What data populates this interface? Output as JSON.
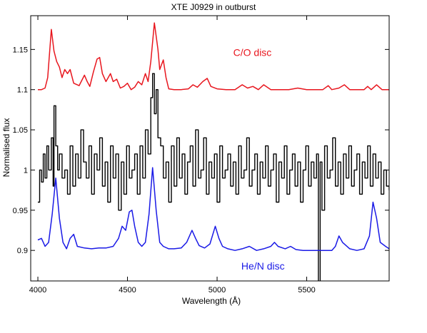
{
  "chart_data": {
    "type": "line",
    "title": "XTE J0929 in outburst",
    "xlabel": "Wavelength (Å)",
    "ylabel": "Normalised flux",
    "xlim": [
      3960,
      5960
    ],
    "ylim": [
      0.862,
      1.192
    ],
    "x_ticks": [
      4000,
      4500,
      5000,
      5500
    ],
    "x_tick_labels": [
      "4000",
      "4500",
      "5000",
      "5500"
    ],
    "y_ticks": [
      0.9,
      0.95,
      1.0,
      1.05,
      1.1,
      1.15
    ],
    "y_tick_labels": [
      "0.9",
      "0.95",
      "1",
      "1.05",
      "1.1",
      "1.15"
    ],
    "grid": false,
    "legend": "none",
    "annotations": [
      {
        "text": "C/O disc",
        "x": 5090,
        "y": 1.142,
        "color": "#e8161e"
      },
      {
        "text": "He/N disc",
        "x": 5135,
        "y": 0.876,
        "color": "#1a1ae6"
      }
    ],
    "series": [
      {
        "color": "#e8161e",
        "style": "line",
        "x": [
          4000,
          4020,
          4040,
          4055,
          4075,
          4090,
          4105,
          4120,
          4135,
          4150,
          4165,
          4180,
          4200,
          4230,
          4260,
          4275,
          4290,
          4310,
          4330,
          4345,
          4360,
          4380,
          4405,
          4420,
          4440,
          4460,
          4480,
          4500,
          4520,
          4540,
          4560,
          4580,
          4600,
          4615,
          4630,
          4650,
          4670,
          4680,
          4700,
          4715,
          4730,
          4760,
          4800,
          4840,
          4865,
          4890,
          4920,
          4945,
          4965,
          5000,
          5050,
          5100,
          5140,
          5170,
          5200,
          5230,
          5260,
          5300,
          5350,
          5400,
          5450,
          5500,
          5550,
          5590,
          5620,
          5640,
          5680,
          5710,
          5740,
          5780,
          5820,
          5840,
          5860,
          5890,
          5920,
          5960
        ],
        "y": [
          1.1,
          1.1,
          1.102,
          1.115,
          1.175,
          1.148,
          1.135,
          1.128,
          1.115,
          1.125,
          1.12,
          1.125,
          1.108,
          1.105,
          1.118,
          1.11,
          1.104,
          1.122,
          1.138,
          1.14,
          1.12,
          1.11,
          1.12,
          1.11,
          1.113,
          1.102,
          1.104,
          1.108,
          1.1,
          1.103,
          1.11,
          1.106,
          1.12,
          1.11,
          1.135,
          1.183,
          1.15,
          1.125,
          1.137,
          1.115,
          1.101,
          1.1,
          1.1,
          1.101,
          1.106,
          1.103,
          1.11,
          1.114,
          1.104,
          1.101,
          1.1,
          1.1,
          1.106,
          1.102,
          1.104,
          1.1,
          1.106,
          1.1,
          1.1,
          1.1,
          1.102,
          1.1,
          1.1,
          1.1,
          1.105,
          1.1,
          1.102,
          1.106,
          1.1,
          1.1,
          1.1,
          1.104,
          1.1,
          1.106,
          1.1,
          1.1
        ]
      },
      {
        "color": "#000000",
        "style": "steps",
        "x": [
          4000,
          4010,
          4020,
          4030,
          4040,
          4050,
          4060,
          4075,
          4085,
          4090,
          4100,
          4110,
          4120,
          4135,
          4150,
          4165,
          4180,
          4195,
          4210,
          4225,
          4240,
          4255,
          4270,
          4285,
          4300,
          4315,
          4330,
          4345,
          4360,
          4375,
          4390,
          4405,
          4420,
          4435,
          4450,
          4465,
          4480,
          4495,
          4510,
          4525,
          4540,
          4555,
          4570,
          4585,
          4600,
          4615,
          4630,
          4640,
          4650,
          4660,
          4670,
          4685,
          4700,
          4715,
          4730,
          4745,
          4760,
          4775,
          4790,
          4805,
          4820,
          4835,
          4850,
          4865,
          4880,
          4895,
          4910,
          4925,
          4940,
          4955,
          4970,
          4985,
          5000,
          5015,
          5030,
          5045,
          5060,
          5075,
          5090,
          5105,
          5120,
          5135,
          5150,
          5165,
          5180,
          5195,
          5210,
          5225,
          5240,
          5255,
          5270,
          5285,
          5300,
          5315,
          5330,
          5345,
          5360,
          5375,
          5390,
          5405,
          5420,
          5435,
          5450,
          5465,
          5480,
          5495,
          5510,
          5525,
          5540,
          5555,
          5565,
          5575,
          5585,
          5600,
          5615,
          5630,
          5645,
          5660,
          5675,
          5690,
          5705,
          5720,
          5735,
          5750,
          5765,
          5780,
          5795,
          5810,
          5825,
          5840,
          5855,
          5870,
          5885,
          5900,
          5915,
          5930,
          5945,
          5960
        ],
        "y": [
          0.96,
          1.0,
          0.985,
          1.02,
          0.99,
          1.03,
          1.0,
          1.04,
          0.98,
          1.08,
          1.03,
          1.0,
          1.02,
          0.99,
          1.0,
          0.97,
          1.03,
          0.98,
          1.02,
          0.99,
          1.05,
          1.01,
          0.99,
          1.03,
          0.97,
          1.02,
          1.0,
          1.04,
          0.98,
          1.01,
          0.96,
          1.03,
          0.99,
          1.02,
          0.95,
          1.01,
          0.97,
          1.03,
          0.99,
          1.0,
          1.02,
          0.97,
          1.03,
          0.99,
          1.05,
          1.02,
          1.09,
          1.12,
          1.07,
          1.1,
          1.04,
          1.03,
          0.99,
          1.01,
          0.96,
          1.03,
          0.98,
          1.04,
          0.99,
          1.02,
          0.97,
          1.01,
          1.03,
          0.98,
          1.05,
          0.99,
          1.0,
          1.04,
          0.97,
          1.01,
          0.99,
          1.02,
          0.96,
          1.03,
          0.99,
          1.0,
          1.02,
          0.98,
          1.01,
          0.97,
          1.03,
          0.99,
          1.0,
          1.04,
          0.98,
          1.0,
          1.02,
          0.97,
          1.01,
          0.99,
          1.03,
          0.98,
          1.0,
          1.02,
          0.96,
          1.01,
          0.99,
          1.03,
          0.97,
          1.0,
          1.02,
          0.98,
          1.01,
          0.96,
          1.0,
          1.03,
          0.98,
          1.01,
          0.99,
          1.02,
          0.86,
          1.01,
          0.95,
          1.03,
          0.99,
          1.0,
          1.04,
          0.98,
          1.01,
          0.97,
          1.02,
          0.99,
          1.03,
          0.98,
          1.0,
          1.02,
          0.97,
          1.01,
          0.99,
          1.03,
          0.98,
          1.02,
          0.99,
          1.01,
          0.97,
          1.0,
          0.98,
          0.975
        ]
      },
      {
        "color": "#1a1ae6",
        "style": "line",
        "x": [
          4000,
          4020,
          4040,
          4060,
          4080,
          4100,
          4120,
          4140,
          4160,
          4180,
          4200,
          4220,
          4260,
          4300,
          4340,
          4380,
          4420,
          4450,
          4470,
          4490,
          4510,
          4525,
          4540,
          4560,
          4580,
          4600,
          4620,
          4640,
          4660,
          4680,
          4700,
          4730,
          4760,
          4800,
          4830,
          4860,
          4880,
          4900,
          4930,
          4960,
          4990,
          5010,
          5030,
          5060,
          5100,
          5140,
          5180,
          5220,
          5260,
          5300,
          5320,
          5340,
          5380,
          5410,
          5440,
          5480,
          5520,
          5560,
          5600,
          5640,
          5660,
          5680,
          5700,
          5740,
          5780,
          5820,
          5850,
          5870,
          5890,
          5910,
          5940,
          5960
        ],
        "y": [
          0.913,
          0.915,
          0.905,
          0.91,
          0.945,
          0.99,
          0.94,
          0.91,
          0.902,
          0.915,
          0.92,
          0.905,
          0.903,
          0.902,
          0.903,
          0.903,
          0.905,
          0.915,
          0.93,
          0.925,
          0.948,
          0.95,
          0.93,
          0.91,
          0.905,
          0.91,
          0.945,
          1.003,
          0.95,
          0.91,
          0.905,
          0.902,
          0.902,
          0.903,
          0.91,
          0.925,
          0.915,
          0.906,
          0.903,
          0.908,
          0.93,
          0.915,
          0.905,
          0.902,
          0.9,
          0.902,
          0.905,
          0.9,
          0.902,
          0.905,
          0.91,
          0.905,
          0.902,
          0.905,
          0.901,
          0.9,
          0.9,
          0.9,
          0.9,
          0.9,
          0.905,
          0.918,
          0.91,
          0.902,
          0.9,
          0.902,
          0.918,
          0.96,
          0.94,
          0.91,
          0.905,
          0.902
        ]
      }
    ]
  }
}
